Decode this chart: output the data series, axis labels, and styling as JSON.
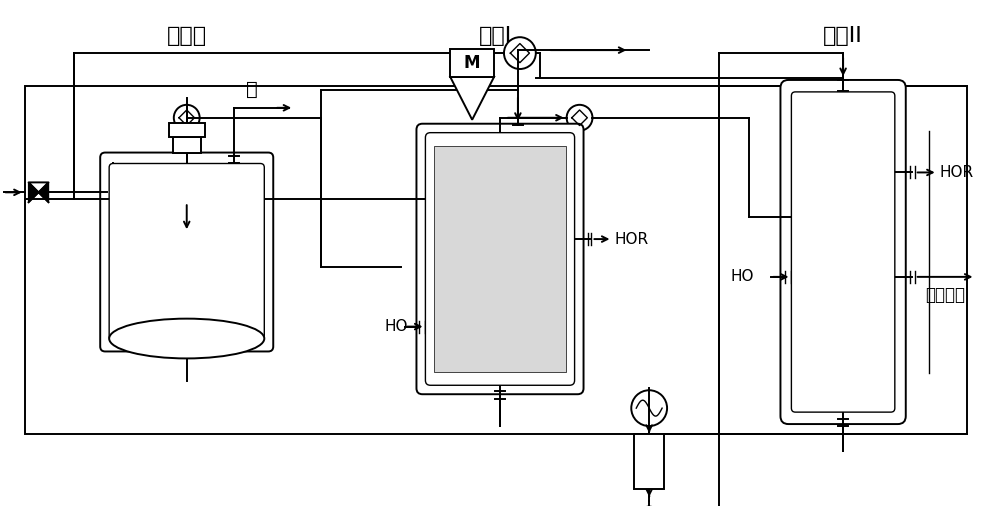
{
  "bg_color": "#ffffff",
  "label_prepolymer": "预聚釜",
  "label_depolyI": "解聚I",
  "label_depolyII": "解聚II",
  "label_water": "水",
  "label_HOR1": "HOR",
  "label_HOR2": "HOR",
  "label_HO1": "HO",
  "label_HO2": "HO",
  "label_product": "粗丙交酯",
  "label_M": "M",
  "figsize": [
    10.0,
    5.07
  ],
  "dpi": 100
}
